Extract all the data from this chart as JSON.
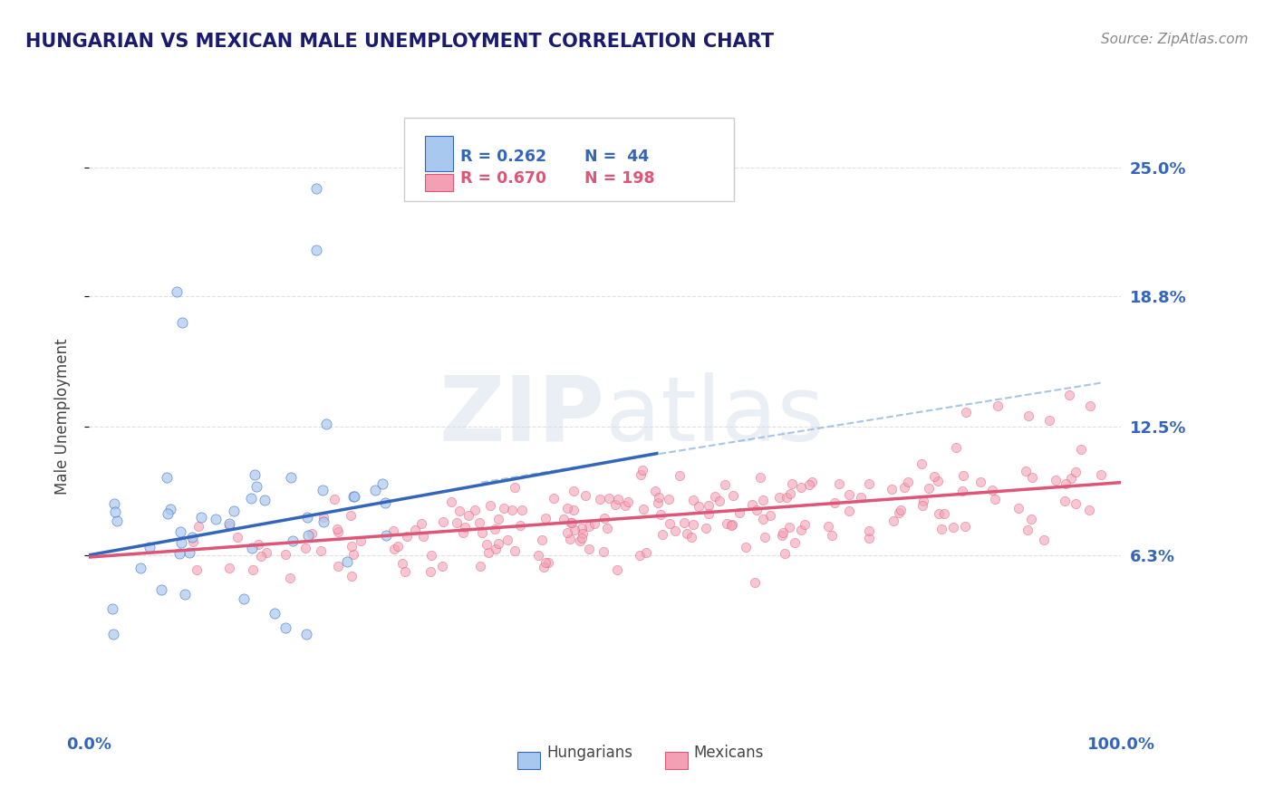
{
  "title": "HUNGARIAN VS MEXICAN MALE UNEMPLOYMENT CORRELATION CHART",
  "source": "Source: ZipAtlas.com",
  "ylabel": "Male Unemployment",
  "xlim": [
    0.0,
    1.0
  ],
  "ylim": [
    -0.02,
    0.28
  ],
  "yticks": [
    0.063,
    0.125,
    0.188,
    0.25
  ],
  "ytick_labels": [
    "6.3%",
    "12.5%",
    "18.8%",
    "25.0%"
  ],
  "xticks": [
    0.0,
    1.0
  ],
  "xtick_labels": [
    "0.0%",
    "100.0%"
  ],
  "legend_r1": "R = 0.262",
  "legend_n1": "N =  44",
  "legend_r2": "R = 0.670",
  "legend_n2": "N = 198",
  "color_hungarian": "#a8c8f0",
  "color_mexican": "#f4a0b4",
  "color_hungarian_line": "#3366bb",
  "color_mexican_line": "#dd5577",
  "color_dashed": "#99bbdd",
  "watermark": "ZIPatlas",
  "background_color": "#ffffff",
  "grid_color": "#e0e0e0",
  "title_color": "#1a1a6e",
  "axis_label_color": "#444444",
  "tick_label_color": "#3366bb",
  "source_color": "#888888",
  "hung_line_x0": 0.0,
  "hung_line_y0": 0.063,
  "hung_line_x1": 0.55,
  "hung_line_y1": 0.112,
  "mex_line_x0": 0.0,
  "mex_line_y0": 0.062,
  "mex_line_x1": 1.0,
  "mex_line_y1": 0.098,
  "dash_line_x0": 0.38,
  "dash_line_y0": 0.098,
  "dash_line_x1": 0.98,
  "dash_line_y1": 0.146,
  "hung_seed": 7,
  "mex_seed": 42,
  "n_hung": 44,
  "n_mex": 198
}
